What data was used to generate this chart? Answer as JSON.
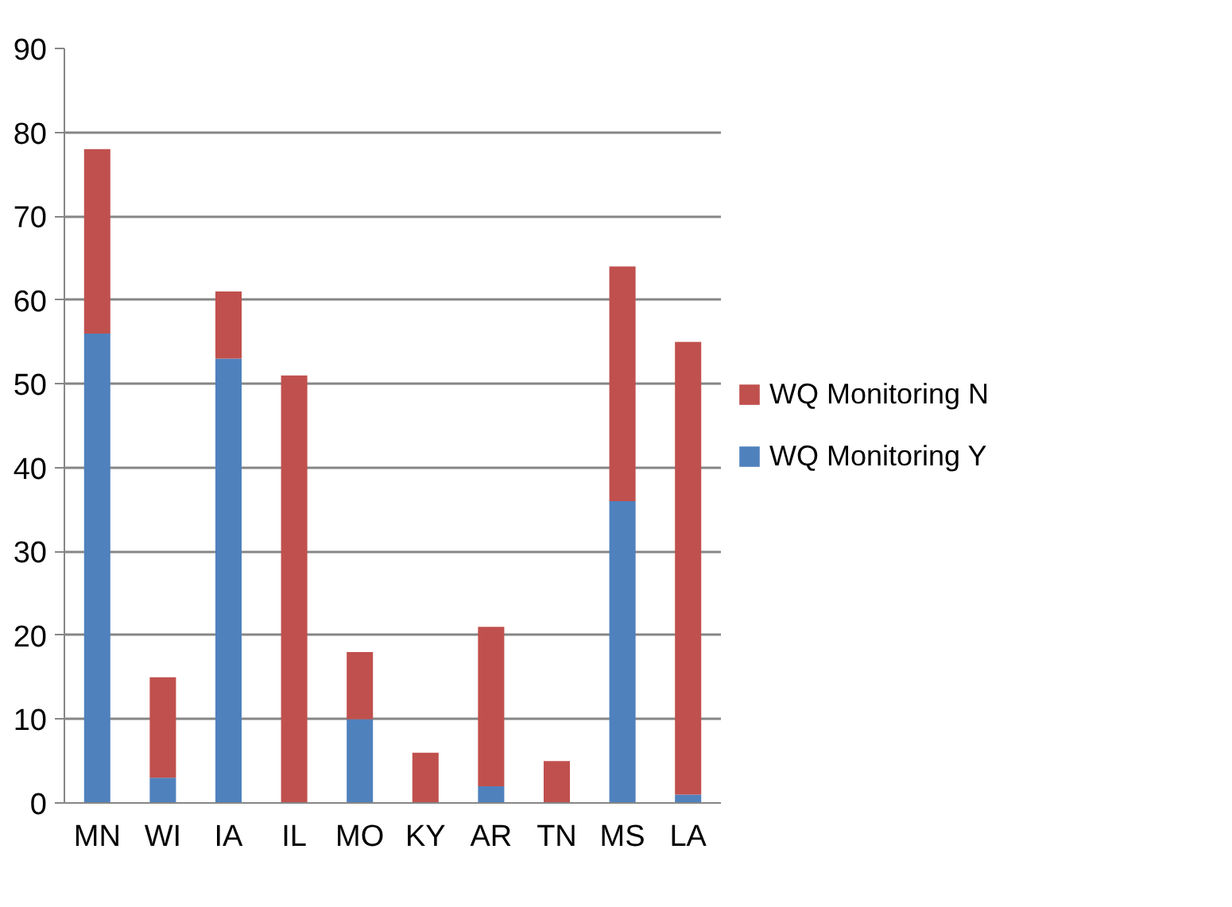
{
  "chart_data": {
    "type": "bar",
    "stacked": true,
    "categories": [
      "MN",
      "WI",
      "IA",
      "IL",
      "MO",
      "KY",
      "AR",
      "TN",
      "MS",
      "LA"
    ],
    "series": [
      {
        "name": "WQ Monitoring Y",
        "color": "#4f81bd",
        "values": [
          56,
          3,
          53,
          0,
          10,
          0,
          2,
          0,
          36,
          1
        ]
      },
      {
        "name": "WQ Monitoring N",
        "color": "#c0504d",
        "values": [
          22,
          12,
          8,
          51,
          8,
          6,
          19,
          5,
          28,
          54
        ]
      }
    ],
    "ylim": [
      0,
      90
    ],
    "yticks": [
      0,
      10,
      20,
      30,
      40,
      50,
      60,
      70,
      80,
      90
    ],
    "grid": "y",
    "legend": "right"
  }
}
